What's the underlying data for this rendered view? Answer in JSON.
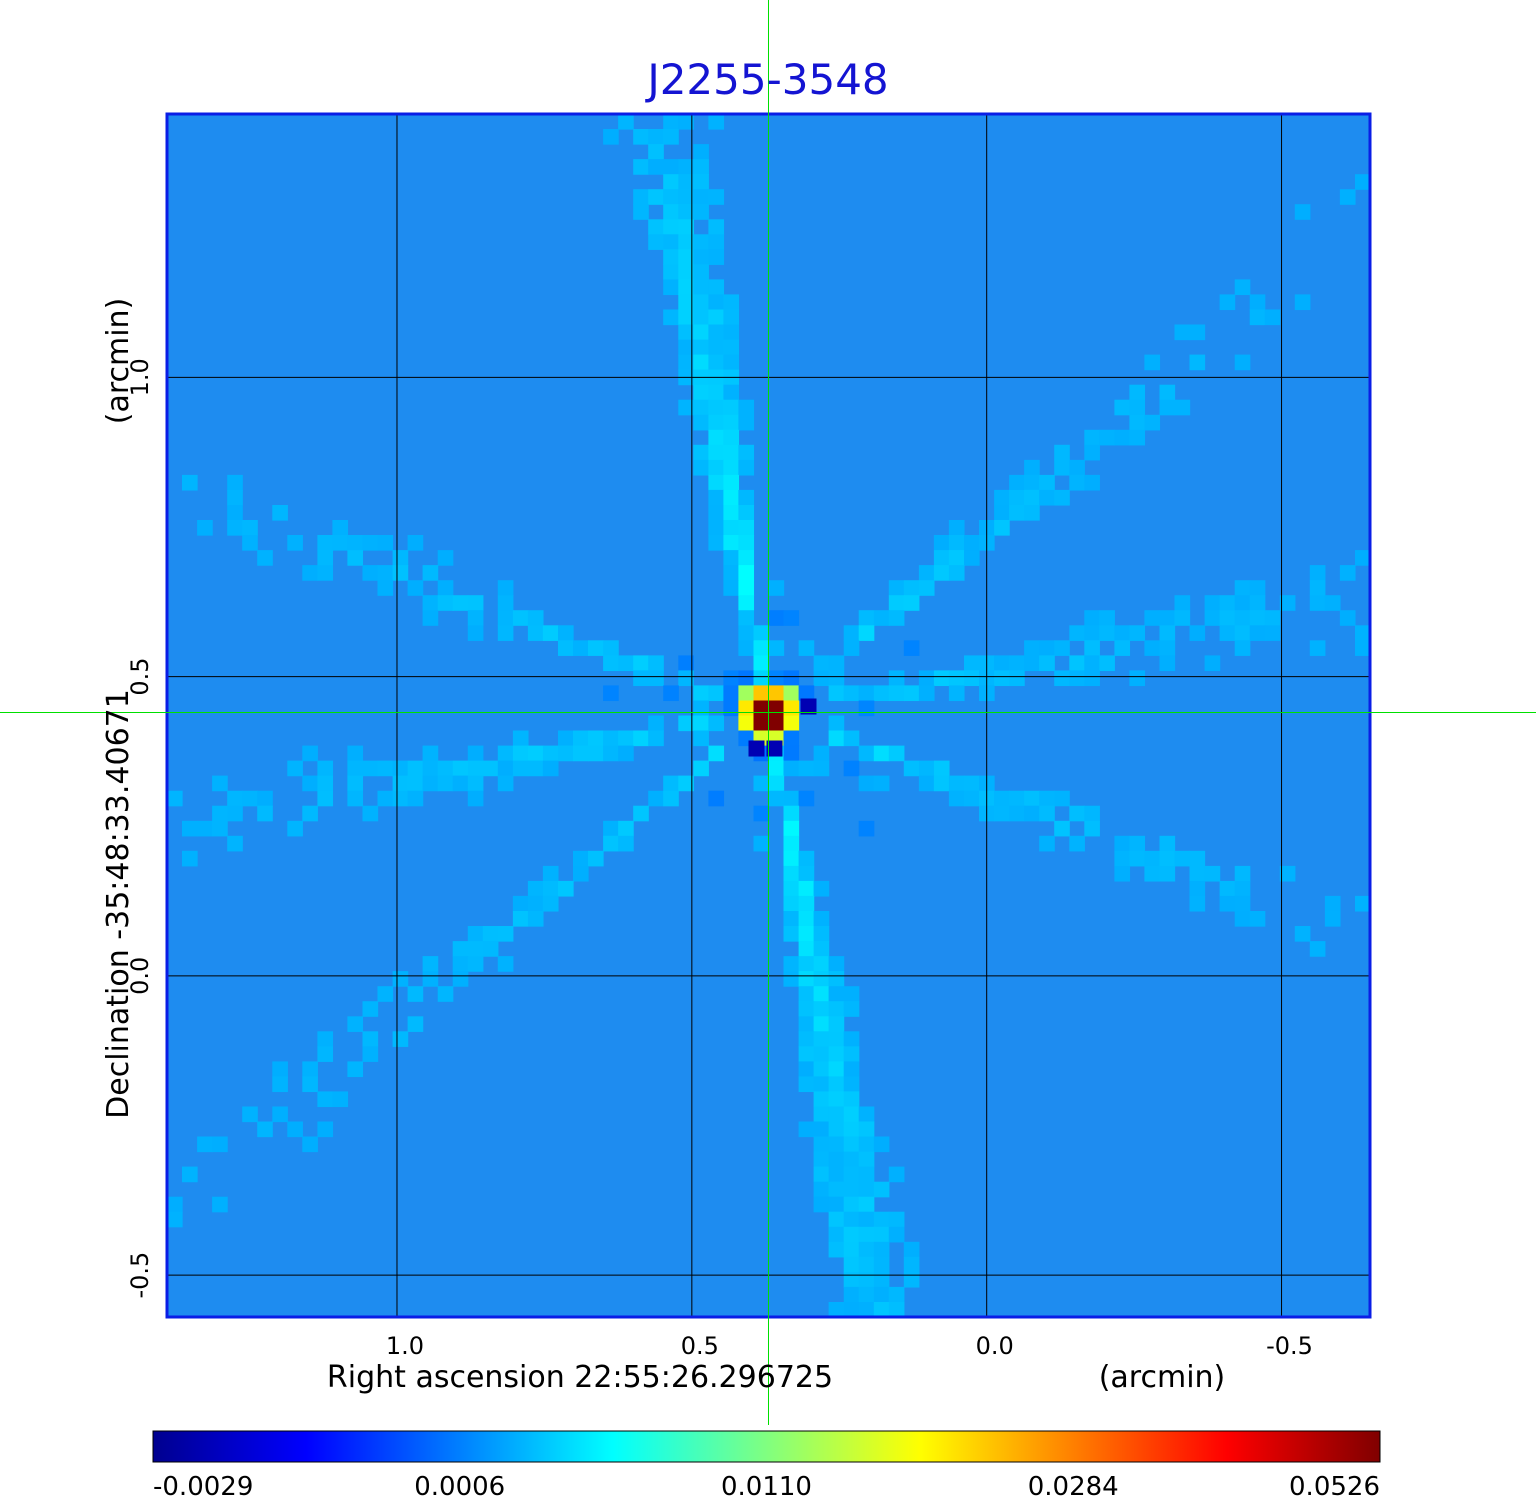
{
  "chart_data": {
    "type": "heatmap",
    "title": "J2255-3548",
    "xlabel": "Right ascension  22:55:26.296725",
    "xunit": "(arcmin)",
    "ylabel": "Declination  -35:48:33.40671",
    "yunit": "(arcmin)",
    "x_range": [
      1.39,
      -0.65
    ],
    "y_range": [
      -0.57,
      1.44
    ],
    "x_ticks": [
      1.0,
      0.5,
      0.0,
      -0.5
    ],
    "x_tick_labels": [
      "1.0",
      "0.5",
      "0.0",
      "-0.5"
    ],
    "y_ticks": [
      1.0,
      0.5,
      0.0,
      -0.5
    ],
    "y_tick_labels": [
      "1.0",
      "0.5",
      "0.0",
      "-0.5"
    ],
    "grid": true,
    "crosshair": {
      "x": 0.37,
      "y": 0.44,
      "color": "#00e000"
    },
    "source": {
      "x": 0.37,
      "y": 0.44,
      "peak": 0.0526
    },
    "colormap": "jet",
    "colorbar": {
      "min": -0.0029,
      "max": 0.0526,
      "tick_labels": [
        "-0.0029",
        "0.0006",
        "0.0110",
        "0.0284",
        "0.0526"
      ]
    },
    "colors": {
      "title": "#1414d2",
      "frame": "#0a1ee6",
      "background": "#1e8cf0",
      "grid": "#000000"
    }
  }
}
